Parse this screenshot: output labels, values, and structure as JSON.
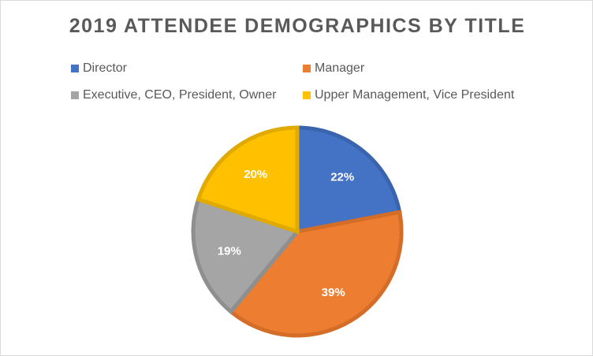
{
  "chart_data": {
    "type": "pie",
    "title": "2019 ATTENDEE DEMOGRAPHICS BY TITLE",
    "legend_position": "top",
    "categories": [
      "Director",
      "Manager",
      "Executive, CEO, President, Owner",
      "Upper Management, Vice President"
    ],
    "values": [
      22,
      39,
      19,
      20
    ],
    "labels": [
      "22%",
      "39%",
      "19%",
      "20%"
    ],
    "colors": [
      "#4472c4",
      "#ed7d31",
      "#a5a5a5",
      "#ffc000"
    ],
    "edge_colors": [
      "#3a64ae",
      "#d36d27",
      "#8f8f8f",
      "#e0aa00"
    ]
  }
}
